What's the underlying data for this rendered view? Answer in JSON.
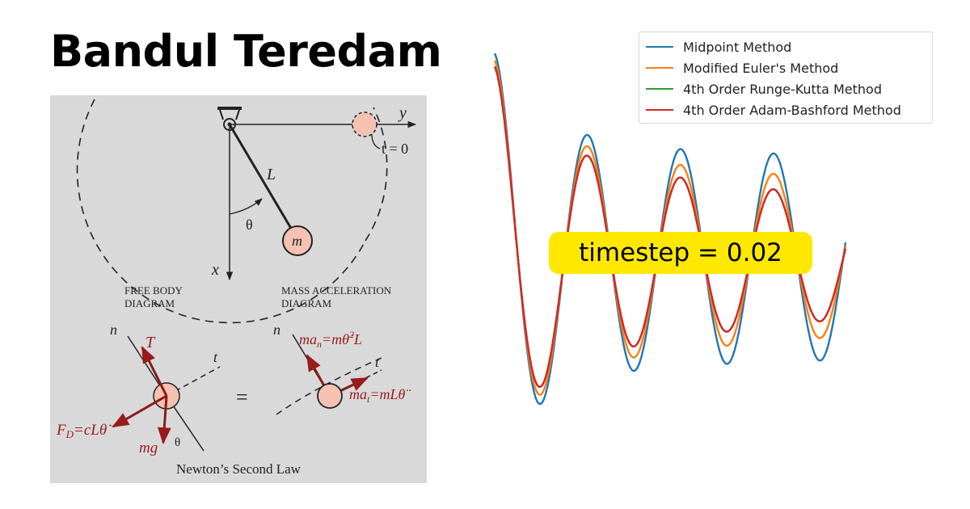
{
  "title": "Bandul Teredam",
  "diagram": {
    "axis_y": "y",
    "axis_x": "x",
    "t0": "t = 0",
    "length": "L",
    "theta": "θ",
    "mass": "m",
    "free_body": [
      "FREE BODY",
      "DIAGRAM"
    ],
    "mass_accel": [
      "MASS ACCELERATION",
      "DIAGRAM"
    ],
    "n": "n",
    "t": "t",
    "tension": "T",
    "drag": "F",
    "drag_sub": "D",
    "drag_eq": "=cLθ̇",
    "weight": "mg",
    "equals": "=",
    "man_pre": "ma",
    "man_sub": "n",
    "man_rhs": "=mθ̇",
    "man_sup": "2",
    "man_end": "L",
    "mat_pre": "ma",
    "mat_sub": "t",
    "mat_rhs": "=mLθ̈",
    "caption": "Newton’s Second Law"
  },
  "badge": "timestep = 0.02",
  "chart_data": {
    "type": "line",
    "series": [
      {
        "name": "Midpoint Method",
        "color": "#1f77b4",
        "amplitude": 1.0,
        "decay": 0.009
      },
      {
        "name": "Modified Euler's Method",
        "color": "#ff7f0e",
        "amplitude": 0.965,
        "decay": 0.03
      },
      {
        "name": "4th Order Runge-Kutta Method",
        "color": "#2ca02c",
        "amplitude": 0.935,
        "decay": 0.05
      },
      {
        "name": "4th Order Adam-Bashford Method",
        "color": "#d62728",
        "amplitude": 0.935,
        "decay": 0.05
      }
    ],
    "legend_position": "top-right",
    "grid": false
  }
}
